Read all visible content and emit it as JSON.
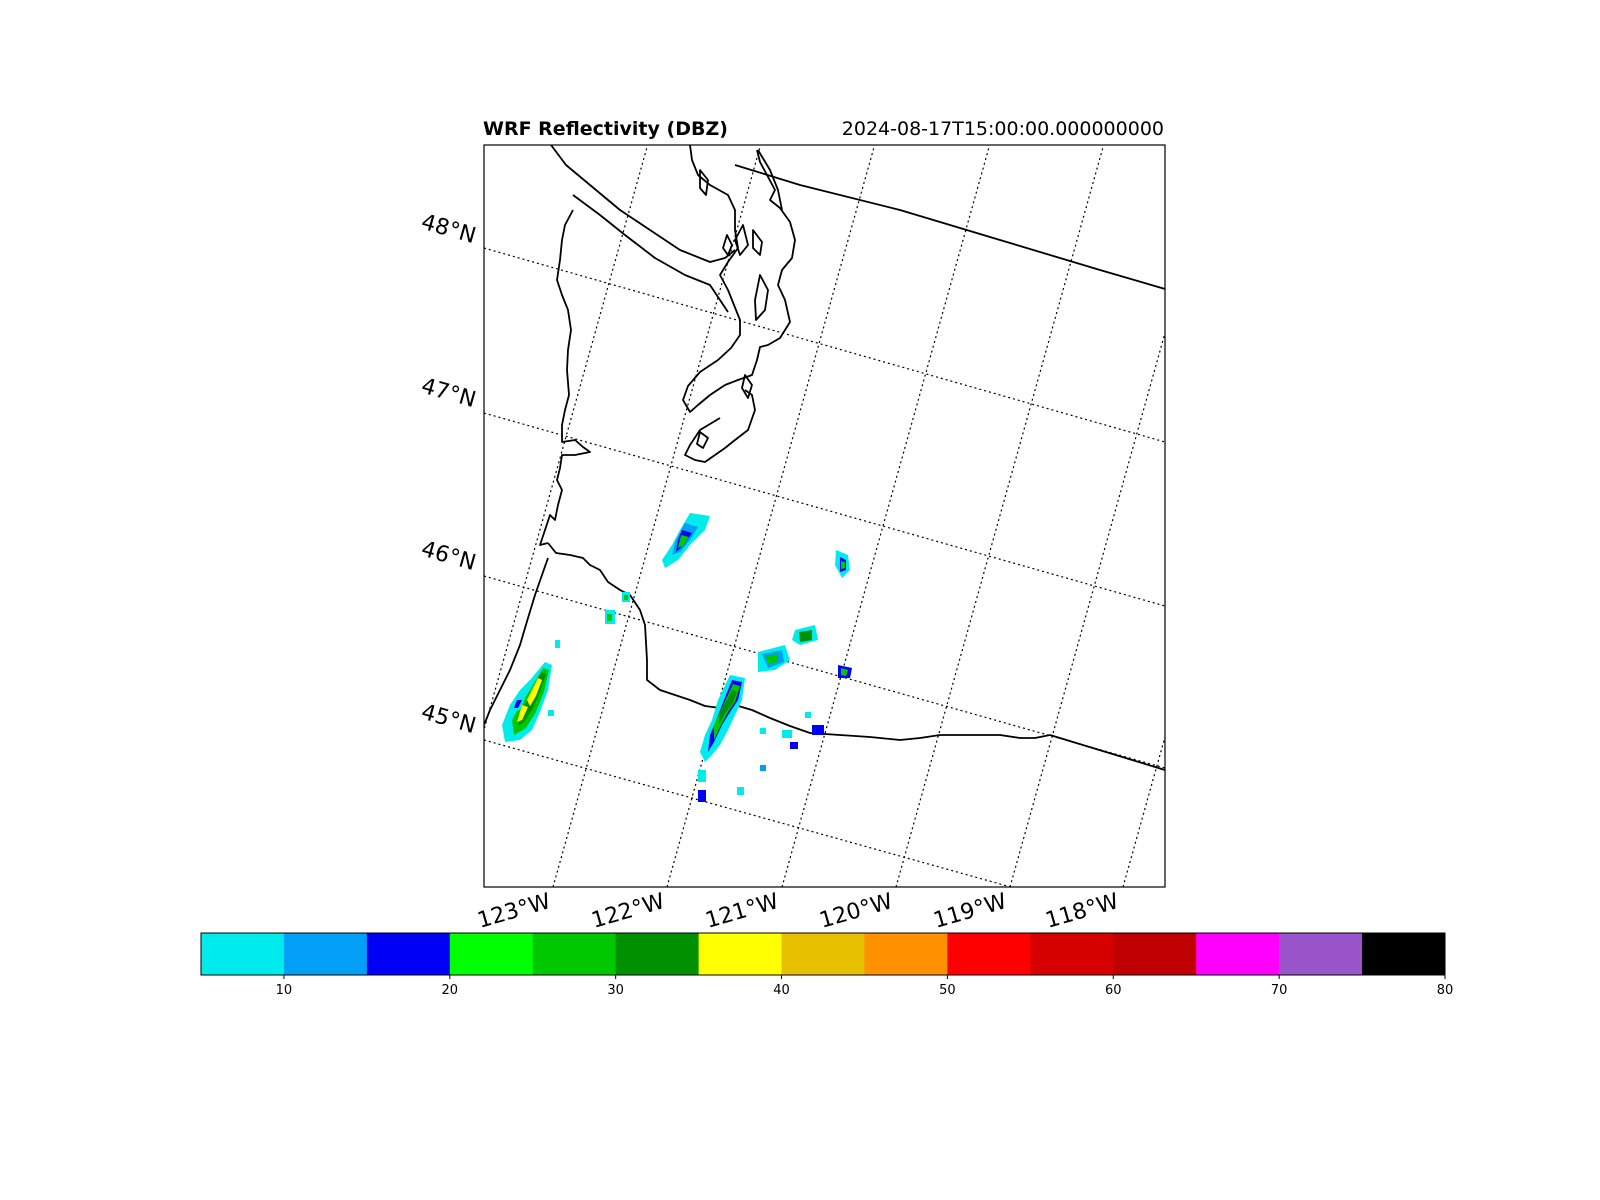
{
  "title": "WRF Reflectivity (DBZ)",
  "valid_time": "2024-08-17T15:00:00.000000000",
  "lat_labels": [
    "48°N",
    "47°N",
    "46°N",
    "45°N"
  ],
  "lon_labels": [
    "123°W",
    "122°W",
    "121°W",
    "120°W",
    "119°W",
    "118°W"
  ],
  "colorbar": {
    "levels": [
      5,
      10,
      15,
      20,
      25,
      30,
      35,
      40,
      45,
      50,
      55,
      60,
      65,
      70,
      75,
      80
    ],
    "colors": [
      "#00ecec",
      "#01a0f6",
      "#0000f6",
      "#00ff00",
      "#00c800",
      "#009000",
      "#ffff00",
      "#e7c000",
      "#ff9000",
      "#ff0000",
      "#d60000",
      "#c00000",
      "#ff00ff",
      "#9955c9",
      "#000000"
    ],
    "tick_labels": [
      "10",
      "20",
      "30",
      "40",
      "50",
      "60",
      "70",
      "80"
    ]
  }
}
